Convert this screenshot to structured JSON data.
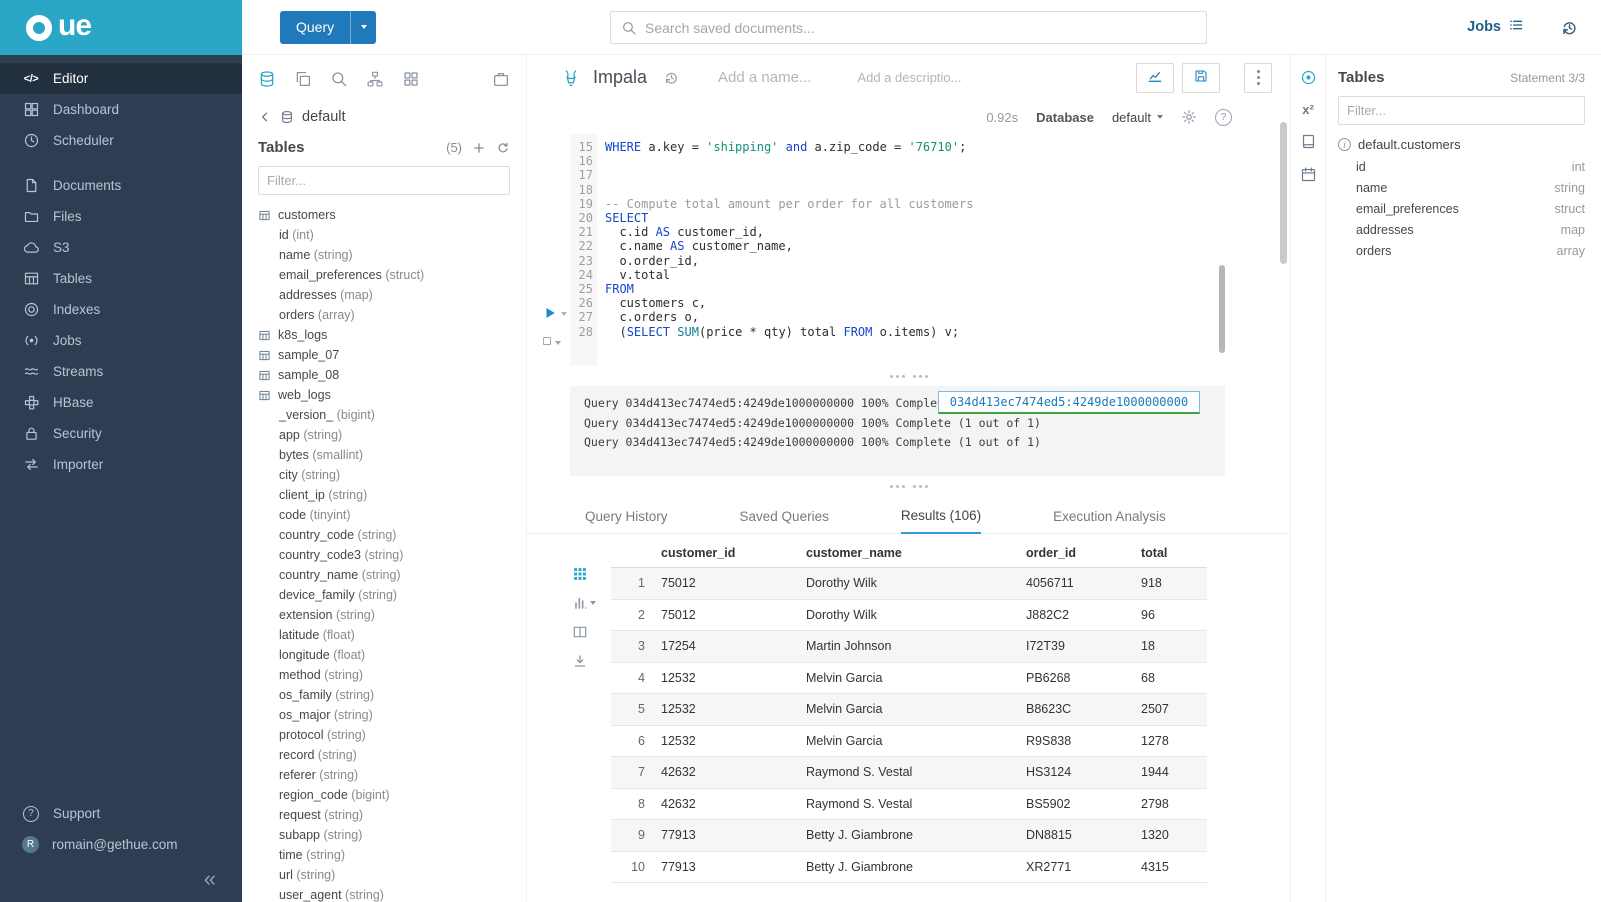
{
  "colors": {
    "brand_teal": "#2AA7C6",
    "sidebar_bg": "#2F3D52",
    "primary_blue": "#2079BA",
    "accent_blue": "#2F9FD6",
    "sql_keyword": "#1547CC",
    "sql_string": "#0F9177",
    "sql_comment": "#9B9B9B"
  },
  "sidebar": {
    "logo_text": "ue",
    "items": [
      {
        "label": "Editor",
        "icon": "code-icon",
        "active": true
      },
      {
        "label": "Dashboard",
        "icon": "dashboard-icon"
      },
      {
        "label": "Scheduler",
        "icon": "scheduler-icon"
      },
      {
        "label": "Documents",
        "icon": "documents-icon",
        "gap": true
      },
      {
        "label": "Files",
        "icon": "files-icon"
      },
      {
        "label": "S3",
        "icon": "s3-icon"
      },
      {
        "label": "Tables",
        "icon": "tables-icon"
      },
      {
        "label": "Indexes",
        "icon": "indexes-icon"
      },
      {
        "label": "Jobs",
        "icon": "jobs-icon"
      },
      {
        "label": "Streams",
        "icon": "streams-icon"
      },
      {
        "label": "HBase",
        "icon": "hbase-icon"
      },
      {
        "label": "Security",
        "icon": "security-icon"
      },
      {
        "label": "Importer",
        "icon": "importer-icon"
      }
    ],
    "bottom": [
      {
        "label": "Support",
        "icon": "help-icon"
      },
      {
        "label": "romain@gethue.com",
        "icon": "avatar",
        "avatar_letter": "R"
      }
    ],
    "collapse_label": "«"
  },
  "topbar": {
    "query_button": "Query",
    "search_placeholder": "Search saved documents...",
    "jobs_label": "Jobs"
  },
  "left_assist": {
    "actions": [
      {
        "icon": "databases-icon",
        "active": true
      },
      {
        "icon": "copy-documents-icon"
      },
      {
        "icon": "search-icon"
      },
      {
        "icon": "sitemap-icon"
      },
      {
        "icon": "apps-grid-icon"
      },
      {
        "icon": "bag-icon",
        "right": true
      }
    ],
    "source": "default",
    "tables_label": "Tables",
    "tables_count": "(5)",
    "filter_placeholder": "Filter...",
    "tables": [
      {
        "name": "customers",
        "columns": [
          {
            "name": "id",
            "type": "int"
          },
          {
            "name": "name",
            "type": "string"
          },
          {
            "name": "email_preferences",
            "type": "struct"
          },
          {
            "name": "addresses",
            "type": "map"
          },
          {
            "name": "orders",
            "type": "array"
          }
        ]
      },
      {
        "name": "k8s_logs",
        "columns": []
      },
      {
        "name": "sample_07",
        "columns": []
      },
      {
        "name": "sample_08",
        "columns": []
      },
      {
        "name": "web_logs",
        "columns": [
          {
            "name": "_version_",
            "type": "bigint"
          },
          {
            "name": "app",
            "type": "string"
          },
          {
            "name": "bytes",
            "type": "smallint"
          },
          {
            "name": "city",
            "type": "string"
          },
          {
            "name": "client_ip",
            "type": "string"
          },
          {
            "name": "code",
            "type": "tinyint"
          },
          {
            "name": "country_code",
            "type": "string"
          },
          {
            "name": "country_code3",
            "type": "string"
          },
          {
            "name": "country_name",
            "type": "string"
          },
          {
            "name": "device_family",
            "type": "string"
          },
          {
            "name": "extension",
            "type": "string"
          },
          {
            "name": "latitude",
            "type": "float"
          },
          {
            "name": "longitude",
            "type": "float"
          },
          {
            "name": "method",
            "type": "string"
          },
          {
            "name": "os_family",
            "type": "string"
          },
          {
            "name": "os_major",
            "type": "string"
          },
          {
            "name": "protocol",
            "type": "string"
          },
          {
            "name": "record",
            "type": "string"
          },
          {
            "name": "referer",
            "type": "string"
          },
          {
            "name": "region_code",
            "type": "bigint"
          },
          {
            "name": "request",
            "type": "string"
          },
          {
            "name": "subapp",
            "type": "string"
          },
          {
            "name": "time",
            "type": "string"
          },
          {
            "name": "url",
            "type": "string"
          },
          {
            "name": "user_agent",
            "type": "string"
          }
        ]
      }
    ]
  },
  "editor": {
    "engine": "Impala",
    "name_placeholder": "Add a name...",
    "description_placeholder": "Add a descriptio...",
    "exec_time": "0.92s",
    "database_label": "Database",
    "database_value": "default",
    "lines": [
      {
        "n": 15,
        "tokens": [
          [
            "kw",
            "WHERE"
          ],
          [
            "t",
            " a.key = "
          ],
          [
            "str",
            "'shipping'"
          ],
          [
            "t",
            " "
          ],
          [
            "kw",
            "and"
          ],
          [
            "t",
            " a.zip_code = "
          ],
          [
            "str",
            "'76710'"
          ],
          [
            "t",
            ";"
          ]
        ]
      },
      {
        "n": 16,
        "tokens": []
      },
      {
        "n": 17,
        "tokens": []
      },
      {
        "n": 18,
        "tokens": []
      },
      {
        "n": 19,
        "tokens": [
          [
            "cmt",
            "-- Compute total amount per order for all customers"
          ]
        ]
      },
      {
        "n": 20,
        "tokens": [
          [
            "kw",
            "SELECT"
          ]
        ]
      },
      {
        "n": 21,
        "tokens": [
          [
            "t",
            "  c.id "
          ],
          [
            "kw",
            "AS"
          ],
          [
            "t",
            " customer_id,"
          ]
        ]
      },
      {
        "n": 22,
        "tokens": [
          [
            "t",
            "  c.name "
          ],
          [
            "kw",
            "AS"
          ],
          [
            "t",
            " customer_name,"
          ]
        ]
      },
      {
        "n": 23,
        "tokens": [
          [
            "t",
            "  o.order_id,"
          ]
        ]
      },
      {
        "n": 24,
        "tokens": [
          [
            "t",
            "  v.total"
          ]
        ]
      },
      {
        "n": 25,
        "tokens": [
          [
            "kw",
            "FROM"
          ]
        ]
      },
      {
        "n": 26,
        "tokens": [
          [
            "t",
            "  customers c,"
          ]
        ]
      },
      {
        "n": 27,
        "tokens": [
          [
            "t",
            "  c.orders o,"
          ]
        ]
      },
      {
        "n": 28,
        "tokens": [
          [
            "t",
            "  ("
          ],
          [
            "kw",
            "SELECT"
          ],
          [
            "t",
            " "
          ],
          [
            "fn",
            "SUM"
          ],
          [
            "t",
            "(price * qty) total "
          ],
          [
            "kw",
            "FROM"
          ],
          [
            "t",
            " o.items) v;"
          ]
        ]
      }
    ]
  },
  "log": {
    "lines": [
      "Query 034d413ec7474ed5:4249de1000000000 100% Complete (1 out of 1)",
      "Query 034d413ec7474ed5:4249de1000000000 100% Complete (1 out of 1)",
      "Query 034d413ec7474ed5:4249de1000000000 100% Complete (1 out of 1)"
    ],
    "highlight": "034d413ec7474ed5:4249de1000000000"
  },
  "tabs": [
    {
      "label": "Query History"
    },
    {
      "label": "Saved Queries"
    },
    {
      "label": "Results (106)",
      "active": true
    },
    {
      "label": "Execution Analysis"
    }
  ],
  "results": {
    "columns": [
      "customer_id",
      "customer_name",
      "order_id",
      "total"
    ],
    "rows": [
      [
        "1",
        "75012",
        "Dorothy Wilk",
        "4056711",
        "918"
      ],
      [
        "2",
        "75012",
        "Dorothy Wilk",
        "J882C2",
        "96"
      ],
      [
        "3",
        "17254",
        "Martin Johnson",
        "I72T39",
        "18"
      ],
      [
        "4",
        "12532",
        "Melvin Garcia",
        "PB6268",
        "68"
      ],
      [
        "5",
        "12532",
        "Melvin Garcia",
        "B8623C",
        "2507"
      ],
      [
        "6",
        "12532",
        "Melvin Garcia",
        "R9S838",
        "1278"
      ],
      [
        "7",
        "42632",
        "Raymond S. Vestal",
        "HS3124",
        "1944"
      ],
      [
        "8",
        "42632",
        "Raymond S. Vestal",
        "BS5902",
        "2798"
      ],
      [
        "9",
        "77913",
        "Betty J. Giambrone",
        "DN8815",
        "1320"
      ],
      [
        "10",
        "77913",
        "Betty J. Giambrone",
        "XR2771",
        "4315"
      ]
    ]
  },
  "right_strip": {
    "icons": [
      {
        "icon": "assistant-icon",
        "active": true
      },
      {
        "icon": "functions-icon",
        "glyph": "x²"
      },
      {
        "icon": "language-reference-icon"
      },
      {
        "icon": "schedule-icon"
      }
    ]
  },
  "right_assist": {
    "title": "Tables",
    "statement": "Statement 3/3",
    "filter_placeholder": "Filter...",
    "active_table": "default.customers",
    "columns": [
      {
        "name": "id",
        "type": "int"
      },
      {
        "name": "name",
        "type": "string"
      },
      {
        "name": "email_preferences",
        "type": "struct"
      },
      {
        "name": "addresses",
        "type": "map"
      },
      {
        "name": "orders",
        "type": "array"
      }
    ]
  }
}
